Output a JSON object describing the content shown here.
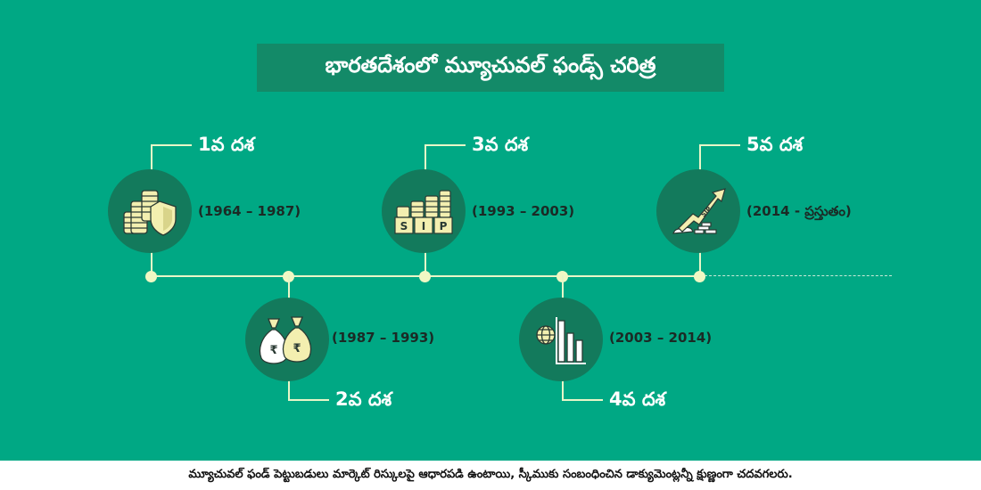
{
  "title": "భారతదేశంలో మ్యూచువల్ ఫండ్స్ చరిత్ర",
  "eras": [
    {
      "label": "1వ దశ",
      "years": "(1964 – 1987)",
      "icon": "coins-shield-icon"
    },
    {
      "label": "2వ దశ",
      "years": "(1987 – 1993)",
      "icon": "money-bags-icon"
    },
    {
      "label": "3వ దశ",
      "years": "(1993 – 2003)",
      "icon": "sip-blocks-icon"
    },
    {
      "label": "4వ దశ",
      "years": "(2003 – 2014)",
      "icon": "globe-bar-chart-icon"
    },
    {
      "label": "5వ దశ",
      "years": "(2014 - ప్రస్తుతం)",
      "icon": "sip-growth-arrow-icon"
    }
  ],
  "icon_text": {
    "sip_letters": [
      "S",
      "I",
      "P"
    ],
    "rupee": "₹",
    "sip": "SIP"
  },
  "footer": "మ్యూచువల్ ఫండ్ పెట్టుబడులు మార్కెట్ రిస్కులపై ఆధారపడి ఉంటాయి, స్కీముకు సంబంధించిన డాక్యుమెంట్లన్నీ క్షుణ్ణంగా చదవగలరు.",
  "colors": {
    "background": "#00a884",
    "title_box": "#138a68",
    "circle": "#137a5c",
    "timeline": "#e8f6c8",
    "icon_fill": "#f3efb0"
  }
}
